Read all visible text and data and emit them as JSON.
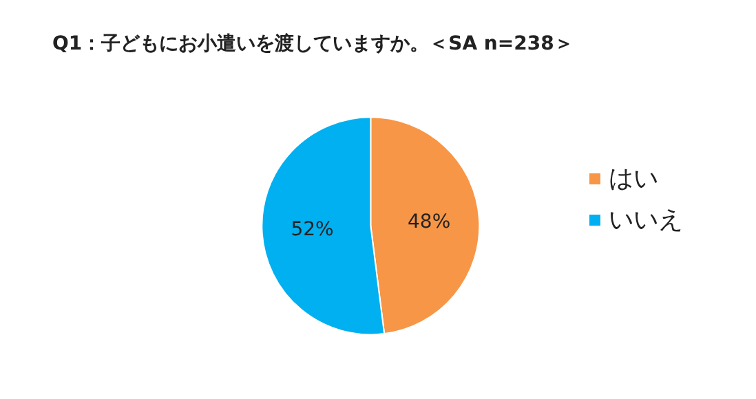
{
  "chart_data": {
    "type": "pie",
    "title": "Q1：子どもにお小遣いを渡していますか。＜SA n=238＞",
    "categories": [
      "はい",
      "いいえ"
    ],
    "values": [
      48,
      52
    ],
    "colors": [
      "#f79646",
      "#00b0f0"
    ],
    "value_labels": [
      "48%",
      "52%"
    ],
    "legend": "right"
  }
}
